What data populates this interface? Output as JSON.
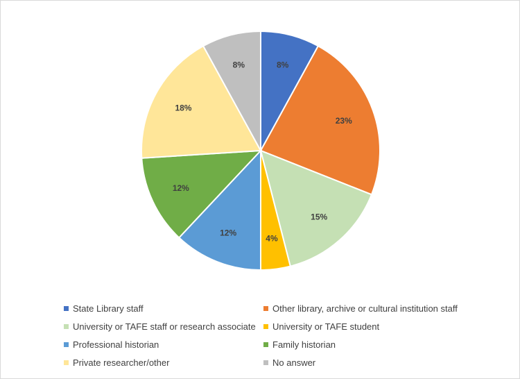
{
  "chart_data": {
    "type": "pie",
    "title": "",
    "categories": [
      "State Library staff",
      "Other library, archive or cultural institution staff",
      "University or TAFE staff or research associate",
      "University or TAFE student",
      "Professional historian",
      "Family historian",
      "Private researcher/other",
      "No answer"
    ],
    "values": [
      8,
      23,
      15,
      4,
      12,
      12,
      18,
      8
    ],
    "labels": [
      "8%",
      "23%",
      "15%",
      "4%",
      "12%",
      "12%",
      "18%",
      "8%"
    ],
    "colors": [
      "#4472C4",
      "#ED7D31",
      "#C5E0B4",
      "#FFC000",
      "#5B9BD5",
      "#70AD47",
      "#FFE699",
      "#BFBFBF"
    ],
    "start_angle": "12 o'clock",
    "direction": "clockwise",
    "legend_position": "bottom"
  }
}
